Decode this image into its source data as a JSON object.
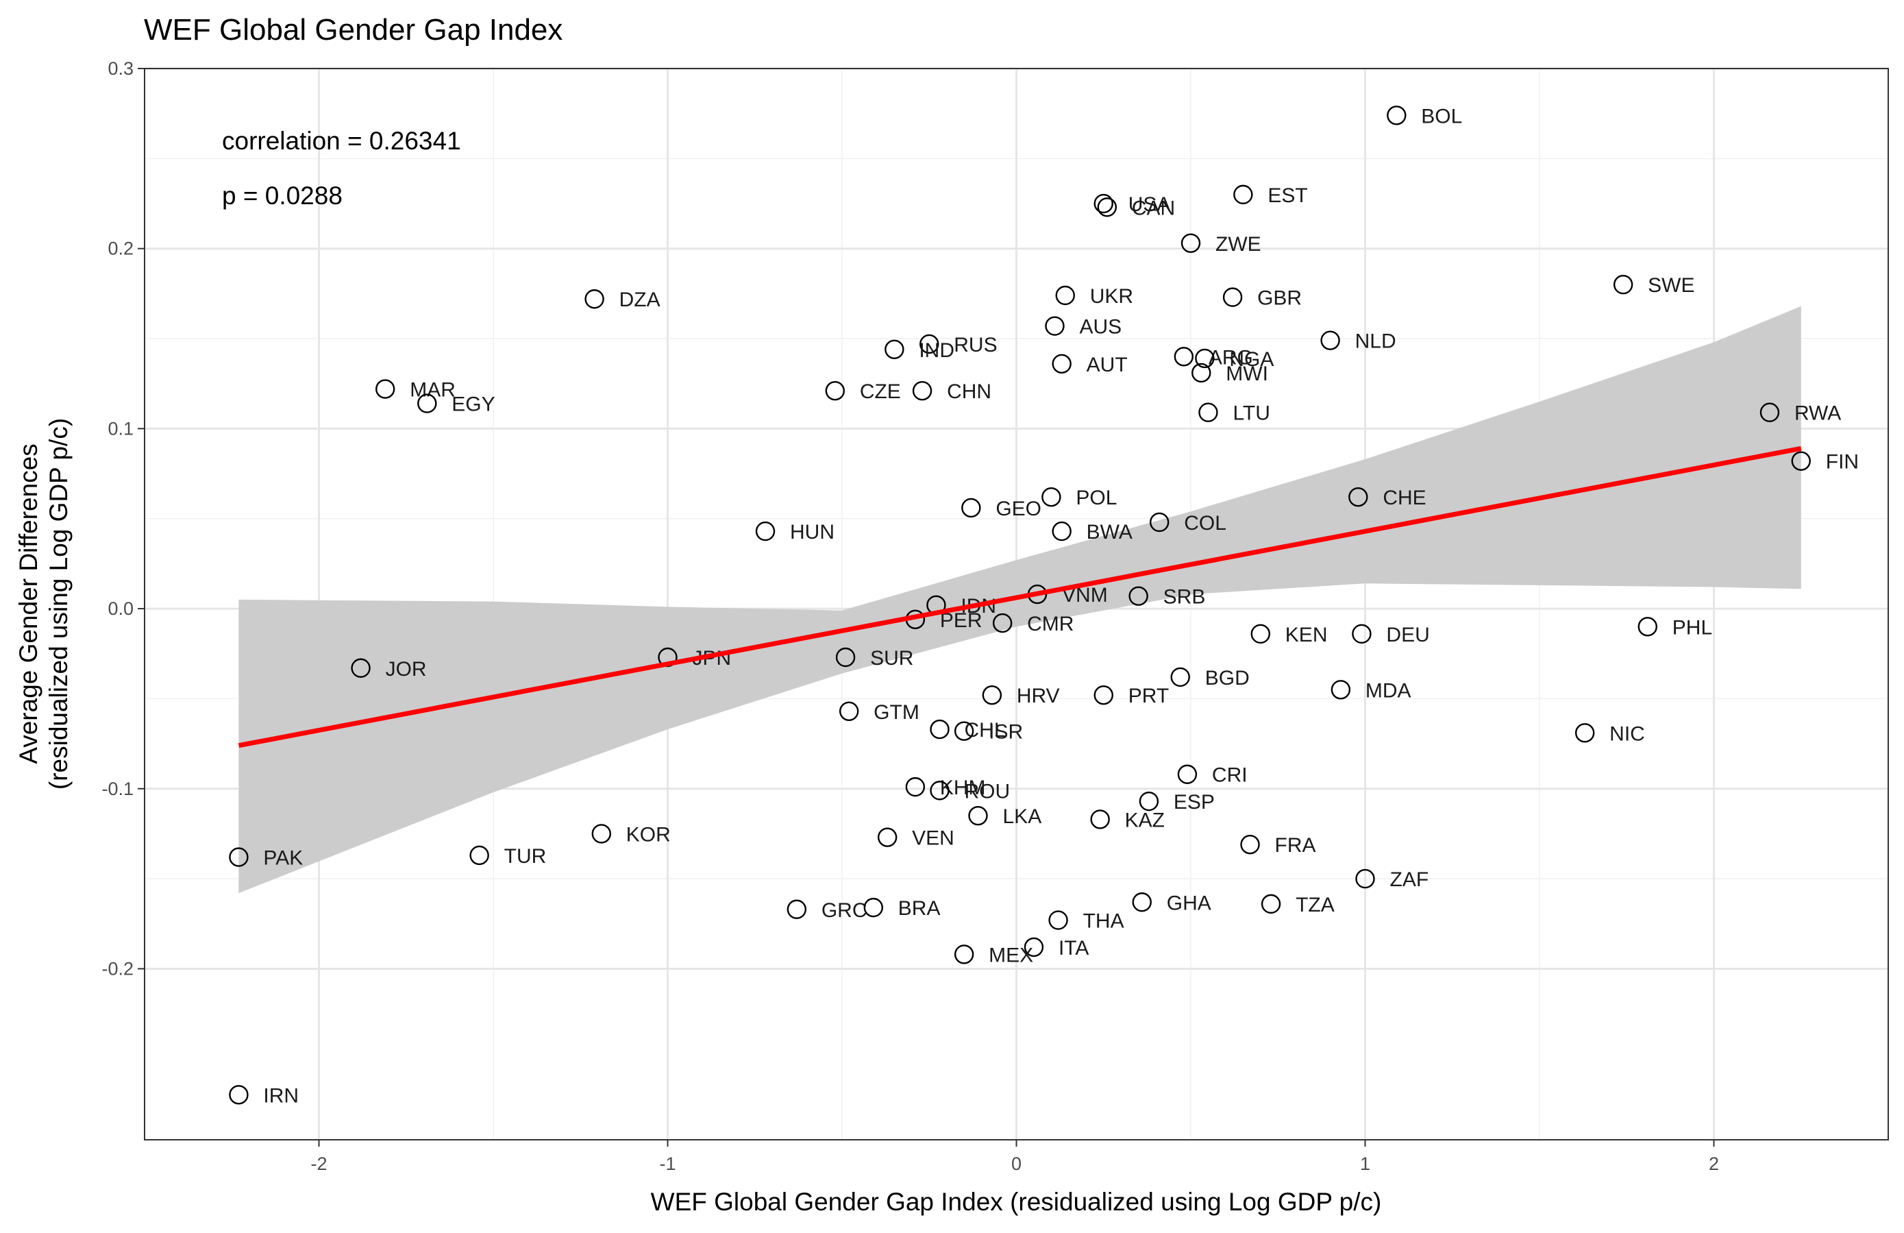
{
  "chart_data": {
    "type": "scatter",
    "title": "WEF Global Gender Gap Index",
    "xlabel": "WEF Global Gender Gap Index (residualized using Log GDP p/c)",
    "ylabel_lines": [
      "Average Gender Differences",
      "(residualized using Log GDP p/c)"
    ],
    "xlim": [
      -2.5,
      2.5
    ],
    "ylim": [
      -0.295,
      0.3
    ],
    "x_ticks": [
      -2,
      -1,
      0,
      1,
      2
    ],
    "x_tick_labels": [
      "-2",
      "-1",
      "0",
      "1",
      "2"
    ],
    "y_ticks": [
      -0.2,
      -0.1,
      0.0,
      0.1,
      0.2,
      0.3
    ],
    "y_tick_labels": [
      "-0.2",
      "-0.1",
      "0.0",
      "0.1",
      "0.2",
      "0.3"
    ],
    "grid": true,
    "annotations": [
      "correlation = 0.26341",
      "p = 0.0288"
    ],
    "fit_line": {
      "x": [
        -2.23,
        2.25
      ],
      "y": [
        -0.076,
        0.089
      ],
      "color": "#ff0000"
    },
    "confidence_band": {
      "color": "#cccccc",
      "x": [
        -2.23,
        -1.5,
        -1.0,
        -0.5,
        0.0,
        0.5,
        1.0,
        1.5,
        2.0,
        2.25
      ],
      "lower": [
        -0.158,
        -0.102,
        -0.067,
        -0.036,
        -0.01,
        0.008,
        0.014,
        0.013,
        0.012,
        0.011
      ],
      "upper": [
        0.005,
        0.004,
        0.001,
        -0.001,
        0.027,
        0.054,
        0.083,
        0.115,
        0.148,
        0.168
      ]
    },
    "points": [
      {
        "label": "BOL",
        "x": 1.09,
        "y": 0.274
      },
      {
        "label": "EST",
        "x": 0.65,
        "y": 0.23
      },
      {
        "label": "USA",
        "x": 0.25,
        "y": 0.225
      },
      {
        "label": "CAN",
        "x": 0.26,
        "y": 0.223
      },
      {
        "label": "ZWE",
        "x": 0.5,
        "y": 0.203
      },
      {
        "label": "SWE",
        "x": 1.74,
        "y": 0.18
      },
      {
        "label": "UKR",
        "x": 0.14,
        "y": 0.174
      },
      {
        "label": "GBR",
        "x": 0.62,
        "y": 0.173
      },
      {
        "label": "DZA",
        "x": -1.21,
        "y": 0.172
      },
      {
        "label": "AUS",
        "x": 0.11,
        "y": 0.157
      },
      {
        "label": "NLD",
        "x": 0.9,
        "y": 0.149
      },
      {
        "label": "RUS",
        "x": -0.25,
        "y": 0.147
      },
      {
        "label": "IND",
        "x": -0.35,
        "y": 0.144
      },
      {
        "label": "ARG",
        "x": 0.48,
        "y": 0.14
      },
      {
        "label": "NGA",
        "x": 0.54,
        "y": 0.139
      },
      {
        "label": "AUT",
        "x": 0.13,
        "y": 0.136
      },
      {
        "label": "MWI",
        "x": 0.53,
        "y": 0.131
      },
      {
        "label": "MAR",
        "x": -1.81,
        "y": 0.122
      },
      {
        "label": "CZE",
        "x": -0.52,
        "y": 0.121
      },
      {
        "label": "CHN",
        "x": -0.27,
        "y": 0.121
      },
      {
        "label": "EGY",
        "x": -1.69,
        "y": 0.114
      },
      {
        "label": "RWA",
        "x": 2.16,
        "y": 0.109
      },
      {
        "label": "LTU",
        "x": 0.55,
        "y": 0.109
      },
      {
        "label": "FIN",
        "x": 2.25,
        "y": 0.082
      },
      {
        "label": "POL",
        "x": 0.1,
        "y": 0.062
      },
      {
        "label": "CHE",
        "x": 0.98,
        "y": 0.062
      },
      {
        "label": "GEO",
        "x": -0.13,
        "y": 0.056
      },
      {
        "label": "COL",
        "x": 0.41,
        "y": 0.048
      },
      {
        "label": "HUN",
        "x": -0.72,
        "y": 0.043
      },
      {
        "label": "BWA",
        "x": 0.13,
        "y": 0.043
      },
      {
        "label": "VNM",
        "x": 0.06,
        "y": 0.008
      },
      {
        "label": "SRB",
        "x": 0.35,
        "y": 0.007
      },
      {
        "label": "IDN",
        "x": -0.23,
        "y": 0.002
      },
      {
        "label": "PER",
        "x": -0.29,
        "y": -0.006
      },
      {
        "label": "CMR",
        "x": -0.04,
        "y": -0.008
      },
      {
        "label": "PHL",
        "x": 1.81,
        "y": -0.01
      },
      {
        "label": "KEN",
        "x": 0.7,
        "y": -0.014
      },
      {
        "label": "DEU",
        "x": 0.99,
        "y": -0.014
      },
      {
        "label": "JPN",
        "x": -1.0,
        "y": -0.027
      },
      {
        "label": "SUR",
        "x": -0.49,
        "y": -0.027
      },
      {
        "label": "JOR",
        "x": -1.88,
        "y": -0.033
      },
      {
        "label": "BGD",
        "x": 0.47,
        "y": -0.038
      },
      {
        "label": "MDA",
        "x": 0.93,
        "y": -0.045
      },
      {
        "label": "HRV",
        "x": -0.07,
        "y": -0.048
      },
      {
        "label": "PRT",
        "x": 0.25,
        "y": -0.048
      },
      {
        "label": "GTM",
        "x": -0.48,
        "y": -0.057
      },
      {
        "label": "CHL",
        "x": -0.22,
        "y": -0.067
      },
      {
        "label": "ISR",
        "x": -0.15,
        "y": -0.068
      },
      {
        "label": "NIC",
        "x": 1.63,
        "y": -0.069
      },
      {
        "label": "CRI",
        "x": 0.49,
        "y": -0.092
      },
      {
        "label": "KHM",
        "x": -0.29,
        "y": -0.099
      },
      {
        "label": "ROU",
        "x": -0.22,
        "y": -0.101
      },
      {
        "label": "ESP",
        "x": 0.38,
        "y": -0.107
      },
      {
        "label": "LKA",
        "x": -0.11,
        "y": -0.115
      },
      {
        "label": "KAZ",
        "x": 0.24,
        "y": -0.117
      },
      {
        "label": "KOR",
        "x": -1.19,
        "y": -0.125
      },
      {
        "label": "VEN",
        "x": -0.37,
        "y": -0.127
      },
      {
        "label": "FRA",
        "x": 0.67,
        "y": -0.131
      },
      {
        "label": "PAK",
        "x": -2.23,
        "y": -0.138
      },
      {
        "label": "TUR",
        "x": -1.54,
        "y": -0.137
      },
      {
        "label": "ZAF",
        "x": 1.0,
        "y": -0.15
      },
      {
        "label": "GHA",
        "x": 0.36,
        "y": -0.163
      },
      {
        "label": "TZA",
        "x": 0.73,
        "y": -0.164
      },
      {
        "label": "GRC",
        "x": -0.63,
        "y": -0.167
      },
      {
        "label": "BRA",
        "x": -0.41,
        "y": -0.166
      },
      {
        "label": "THA",
        "x": 0.12,
        "y": -0.173
      },
      {
        "label": "ITA",
        "x": 0.05,
        "y": -0.188
      },
      {
        "label": "MEX",
        "x": -0.15,
        "y": -0.192
      },
      {
        "label": "IRN",
        "x": -2.23,
        "y": -0.27
      }
    ]
  }
}
